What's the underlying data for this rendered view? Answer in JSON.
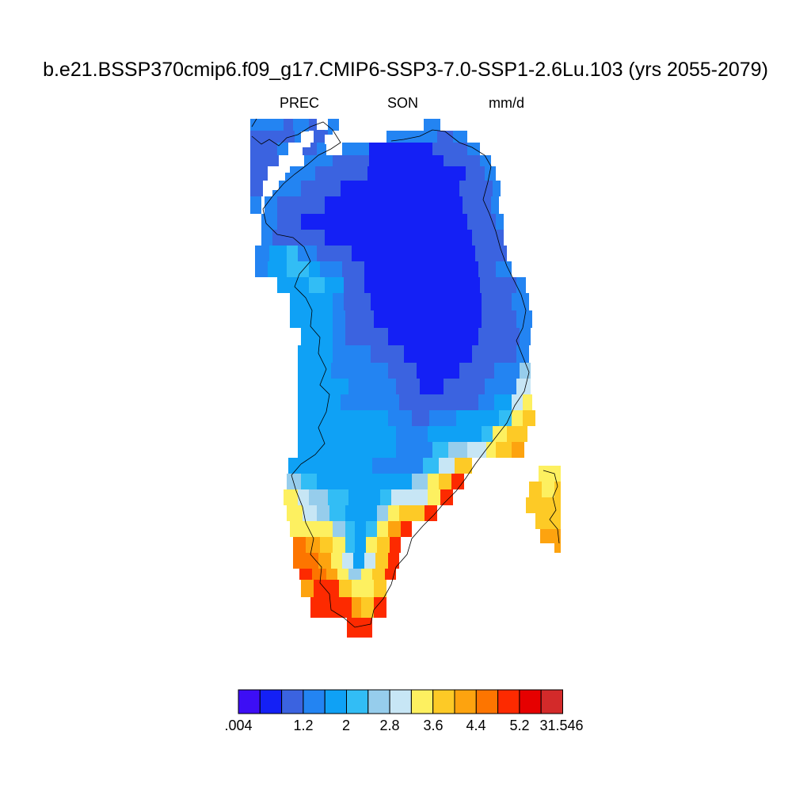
{
  "title": "b.e21.BSSP370cmip6.f09_g17.CMIP6-SSP3-7.0-SSP1-2.6Lu.103 (yrs 2055-2079)",
  "subtitle": {
    "variable": "PREC",
    "season": "SON",
    "units": "mm/d"
  },
  "colorbar": {
    "colors": [
      "#3d0ef5",
      "#1420f5",
      "#3b63e0",
      "#2384f2",
      "#0fa1f5",
      "#32bdf5",
      "#96cdec",
      "#c7e6f5",
      "#fdf060",
      "#fdca26",
      "#fda30f",
      "#fd7500",
      "#fd2a00",
      "#e60000",
      "#d32a2a"
    ],
    "labels": [
      ".004",
      "1.2",
      "2",
      "2.8",
      "3.6",
      "4.4",
      "5.2",
      "31.546"
    ]
  },
  "map_data": {
    "region": "Greenland",
    "field": "precipitation",
    "pattern": "lowest values (about 0.4-0.8 mm/d) over the northern and central interior, increasing toward the coasts; highest values (above 5.2 mm/d) along the southeast coast and southern tip"
  }
}
